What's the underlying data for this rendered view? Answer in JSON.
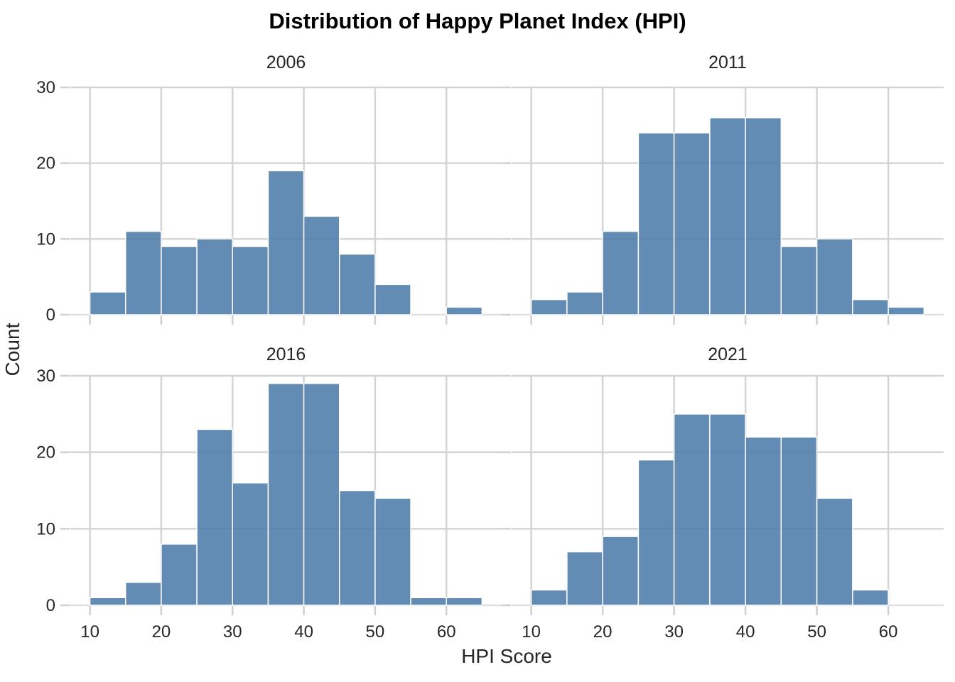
{
  "title": "Distribution of Happy Planet Index (HPI)",
  "axes": {
    "x_label": "HPI Score",
    "y_label": "Count",
    "x_ticks": [
      10,
      20,
      30,
      40,
      50,
      60
    ],
    "y_ticks": [
      0,
      10,
      20,
      30
    ],
    "x_domain": [
      7.25,
      67.75
    ],
    "y_domain": [
      0,
      30
    ]
  },
  "colors": {
    "bar_fill": "#4878A8",
    "bar_opacity": 0.85,
    "bar_edge": "#FFFFFF",
    "gridline": "#D4D4D4",
    "spine": "#DFDFDF",
    "tick_mark": "#D0D0D0",
    "tick_text": "#262626",
    "title_text": "#000000"
  },
  "chart_data": {
    "type": "bar",
    "subtype": "histogram-facet-grid",
    "bin_start": 10,
    "bin_width": 5,
    "bin_edges": [
      10,
      15,
      20,
      25,
      30,
      35,
      40,
      45,
      50,
      55,
      60,
      65
    ],
    "title": "Distribution of Happy Planet Index (HPI)",
    "xlabel": "HPI Score",
    "ylabel": "Count",
    "xlim": [
      7.25,
      67.75
    ],
    "ylim": [
      0,
      30
    ],
    "grid": true,
    "facets": [
      {
        "label": "2006",
        "counts": [
          3,
          11,
          9,
          10,
          9,
          19,
          13,
          8,
          4,
          0,
          1
        ]
      },
      {
        "label": "2011",
        "counts": [
          2,
          3,
          11,
          24,
          24,
          26,
          26,
          9,
          10,
          2,
          1
        ]
      },
      {
        "label": "2016",
        "counts": [
          1,
          3,
          8,
          23,
          16,
          29,
          29,
          15,
          14,
          1,
          1
        ]
      },
      {
        "label": "2021",
        "counts": [
          2,
          7,
          9,
          19,
          25,
          25,
          22,
          22,
          14,
          2,
          0
        ]
      }
    ]
  }
}
